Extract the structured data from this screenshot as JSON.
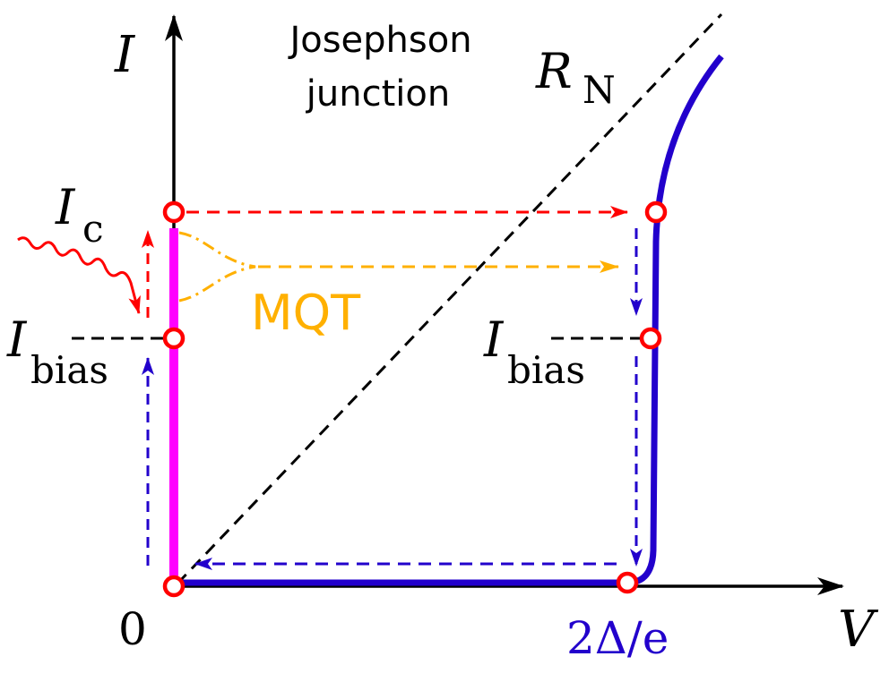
{
  "labels": {
    "current_axis": "I",
    "voltage_axis": "V",
    "title_line1": "Josephson",
    "title_line2": "junction",
    "normal_resistance": "R",
    "normal_resistance_sub": "N",
    "critical_current": "I",
    "critical_current_sub": "c",
    "bias_current": "I",
    "bias_current_sub": "bias",
    "origin": "0",
    "gap_voltage": "2Δ/e",
    "mqt": "MQT"
  },
  "colors": {
    "axis": "#000000",
    "iv_curve": "#2200cc",
    "supercurrent_branch": "#ff00ff",
    "markers": "#ff0000",
    "mqt": "#ffb000",
    "return_path": "#2200cc"
  }
}
